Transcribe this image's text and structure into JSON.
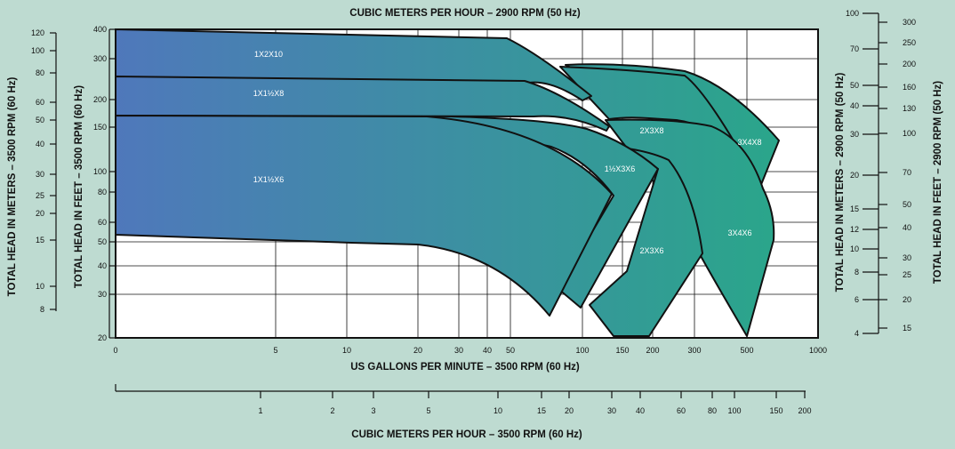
{
  "chart_data": {
    "type": "area",
    "title_top": "CUBIC METERS PER HOUR – 2900 RPM (50 Hz)",
    "title_bottom": "CUBIC METERS PER HOUR – 3500 RPM (60 Hz)",
    "xlabel": "US GALLONS PER MINUTE – 3500 RPM (60 Hz)",
    "ylabel_left_outer": "TOTAL HEAD IN METERS – 3500 RPM (60 Hz)",
    "ylabel_left_inner": "TOTAL HEAD IN FEET – 3500 RPM (60 Hz)",
    "ylabel_right_inner": "TOTAL HEAD IN METERS – 2900 RPM (50 Hz)",
    "ylabel_right_outer": "TOTAL HEAD IN FEET – 2900 RPM (50 Hz)",
    "x_gpm_ticks": [
      "0",
      "5",
      "10",
      "20",
      "30",
      "40",
      "50",
      "100",
      "150",
      "200",
      "300",
      "500",
      "1000"
    ],
    "x_m3h_60_ticks": [
      "1",
      "2",
      "3",
      "5",
      "10",
      "15",
      "20",
      "30",
      "40",
      "60",
      "80",
      "100",
      "150",
      "200"
    ],
    "y_feet_60_ticks": [
      "400",
      "300",
      "200",
      "150",
      "100",
      "80",
      "60",
      "50",
      "40",
      "30",
      "20"
    ],
    "y_meters_60_ticks": [
      "120",
      "100",
      "80",
      "60",
      "50",
      "40",
      "30",
      "25",
      "20",
      "15",
      "10",
      "8"
    ],
    "y_meters_50_ticks": [
      "100",
      "70",
      "50",
      "40",
      "30",
      "20",
      "15",
      "12",
      "10",
      "8",
      "6",
      "4"
    ],
    "y_feet_50_ticks": [
      "300",
      "250",
      "200",
      "160",
      "130",
      "100",
      "70",
      "50",
      "40",
      "30",
      "25",
      "20",
      "15"
    ],
    "series": [
      {
        "name": "1X2X10"
      },
      {
        "name": "1X1½X8"
      },
      {
        "name": "1X1½X6"
      },
      {
        "name": "1½X3X6"
      },
      {
        "name": "2X3X8"
      },
      {
        "name": "2X3X6"
      },
      {
        "name": "3X4X8"
      },
      {
        "name": "3X4X6"
      }
    ],
    "colors": {
      "background": "#bedbd1",
      "gradient_start": "#4f78bb",
      "gradient_end": "#2aa68a"
    }
  }
}
